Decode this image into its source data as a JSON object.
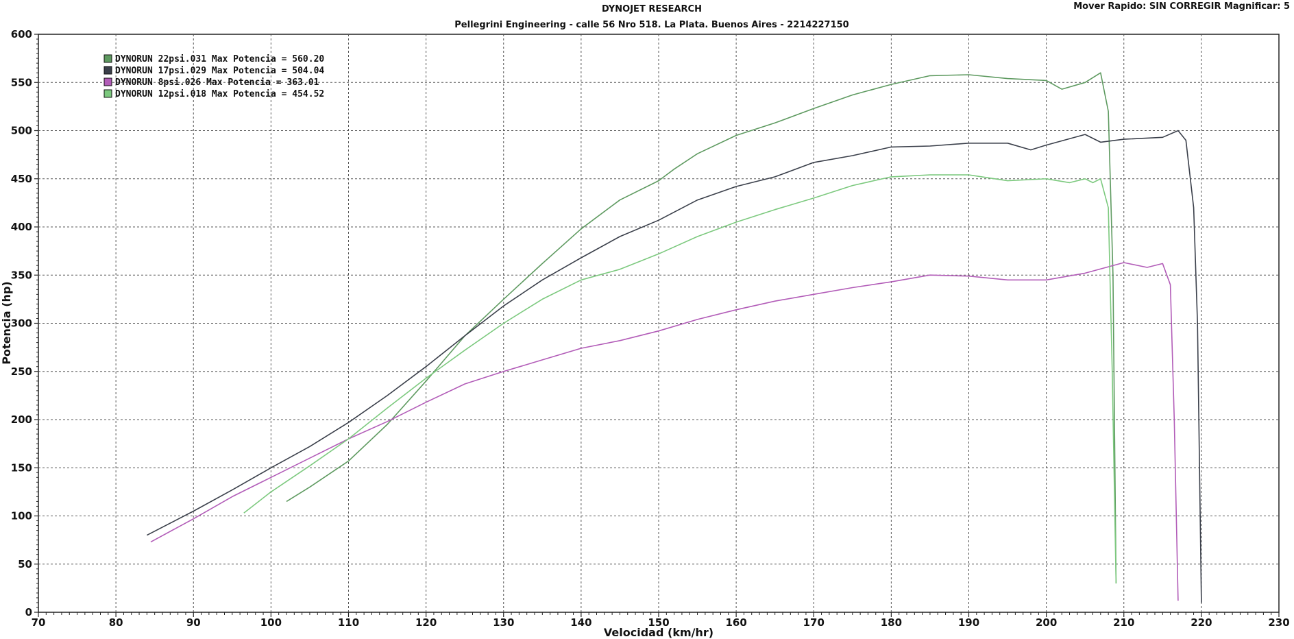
{
  "header": {
    "title": "DYNOJET RESEARCH",
    "subtitle": "Pellegrini Engineering - calle 56 Nro 518. La Plata. Buenos Aires - 2214227150",
    "top_right": "Mover Rapido: SIN CORREGIR  Magnificar: 5"
  },
  "chart_data": {
    "type": "line",
    "title": "DYNOJET RESEARCH",
    "subtitle": "Pellegrini Engineering - calle 56 Nro 518. La Plata. Buenos Aires - 2214227150",
    "xlabel": "Velocidad (km/hr)",
    "ylabel": "Potencia (hp)",
    "xlim": [
      70,
      230
    ],
    "ylim": [
      0,
      600
    ],
    "xticks": [
      70,
      80,
      90,
      100,
      110,
      120,
      130,
      140,
      150,
      160,
      170,
      180,
      190,
      200,
      210,
      220,
      230
    ],
    "yticks": [
      0,
      50,
      100,
      150,
      200,
      250,
      300,
      350,
      400,
      450,
      500,
      550,
      600
    ],
    "grid": true,
    "legend_position": "top-left",
    "series": [
      {
        "name": "DYNORUN 22psi.031 Max Potencia = 560.20",
        "color": "#5e9a60",
        "points": [
          [
            102,
            115
          ],
          [
            105,
            130
          ],
          [
            110,
            157
          ],
          [
            115,
            195
          ],
          [
            120,
            240
          ],
          [
            125,
            287
          ],
          [
            130,
            325
          ],
          [
            135,
            362
          ],
          [
            140,
            398
          ],
          [
            145,
            428
          ],
          [
            150,
            448
          ],
          [
            152,
            460
          ],
          [
            155,
            476
          ],
          [
            160,
            495
          ],
          [
            165,
            508
          ],
          [
            170,
            523
          ],
          [
            175,
            537
          ],
          [
            180,
            548
          ],
          [
            185,
            557
          ],
          [
            190,
            558
          ],
          [
            195,
            554
          ],
          [
            200,
            552
          ],
          [
            202,
            543
          ],
          [
            205,
            550
          ],
          [
            207,
            560
          ],
          [
            208,
            520
          ],
          [
            208.6,
            350
          ],
          [
            209,
            30
          ]
        ]
      },
      {
        "name": "DYNORUN 17psi.029 Max Potencia = 504.04",
        "color": "#3a3f4a",
        "points": [
          [
            84,
            80
          ],
          [
            90,
            105
          ],
          [
            95,
            127
          ],
          [
            100,
            150
          ],
          [
            105,
            172
          ],
          [
            110,
            197
          ],
          [
            115,
            225
          ],
          [
            120,
            255
          ],
          [
            125,
            287
          ],
          [
            130,
            318
          ],
          [
            135,
            345
          ],
          [
            140,
            368
          ],
          [
            145,
            390
          ],
          [
            150,
            407
          ],
          [
            155,
            428
          ],
          [
            160,
            442
          ],
          [
            165,
            452
          ],
          [
            170,
            467
          ],
          [
            175,
            474
          ],
          [
            180,
            483
          ],
          [
            185,
            484
          ],
          [
            190,
            487
          ],
          [
            195,
            487
          ],
          [
            198,
            480
          ],
          [
            200,
            485
          ],
          [
            205,
            496
          ],
          [
            207,
            488
          ],
          [
            210,
            491
          ],
          [
            215,
            493
          ],
          [
            217,
            500
          ],
          [
            218,
            490
          ],
          [
            219,
            420
          ],
          [
            219.5,
            300
          ],
          [
            220,
            10
          ]
        ]
      },
      {
        "name": "DYNORUN 8psi.026 Max Potencia = 363.01",
        "color": "#b25cb8",
        "points": [
          [
            84.5,
            73
          ],
          [
            90,
            97
          ],
          [
            95,
            120
          ],
          [
            100,
            140
          ],
          [
            105,
            160
          ],
          [
            110,
            180
          ],
          [
            115,
            198
          ],
          [
            120,
            218
          ],
          [
            125,
            237
          ],
          [
            130,
            250
          ],
          [
            135,
            262
          ],
          [
            140,
            274
          ],
          [
            145,
            282
          ],
          [
            150,
            292
          ],
          [
            155,
            304
          ],
          [
            160,
            314
          ],
          [
            165,
            323
          ],
          [
            170,
            330
          ],
          [
            175,
            337
          ],
          [
            180,
            343
          ],
          [
            185,
            350
          ],
          [
            190,
            349
          ],
          [
            195,
            345
          ],
          [
            200,
            345
          ],
          [
            205,
            352
          ],
          [
            210,
            363
          ],
          [
            213,
            358
          ],
          [
            215,
            362
          ],
          [
            216,
            340
          ],
          [
            216.5,
            200
          ],
          [
            217,
            12
          ]
        ]
      },
      {
        "name": "DYNORUN 12psi.018 Max Potencia = 454.52",
        "color": "#7cc97e",
        "points": [
          [
            96.5,
            103
          ],
          [
            100,
            125
          ],
          [
            105,
            152
          ],
          [
            110,
            180
          ],
          [
            115,
            212
          ],
          [
            120,
            243
          ],
          [
            125,
            272
          ],
          [
            130,
            300
          ],
          [
            135,
            325
          ],
          [
            140,
            345
          ],
          [
            145,
            356
          ],
          [
            150,
            372
          ],
          [
            155,
            390
          ],
          [
            160,
            405
          ],
          [
            165,
            418
          ],
          [
            170,
            430
          ],
          [
            175,
            443
          ],
          [
            180,
            452
          ],
          [
            185,
            454
          ],
          [
            190,
            454
          ],
          [
            195,
            448
          ],
          [
            200,
            450
          ],
          [
            203,
            446
          ],
          [
            205,
            450
          ],
          [
            206,
            446
          ],
          [
            207,
            450
          ],
          [
            208,
            420
          ],
          [
            208.5,
            250
          ],
          [
            209,
            30
          ]
        ]
      }
    ]
  }
}
